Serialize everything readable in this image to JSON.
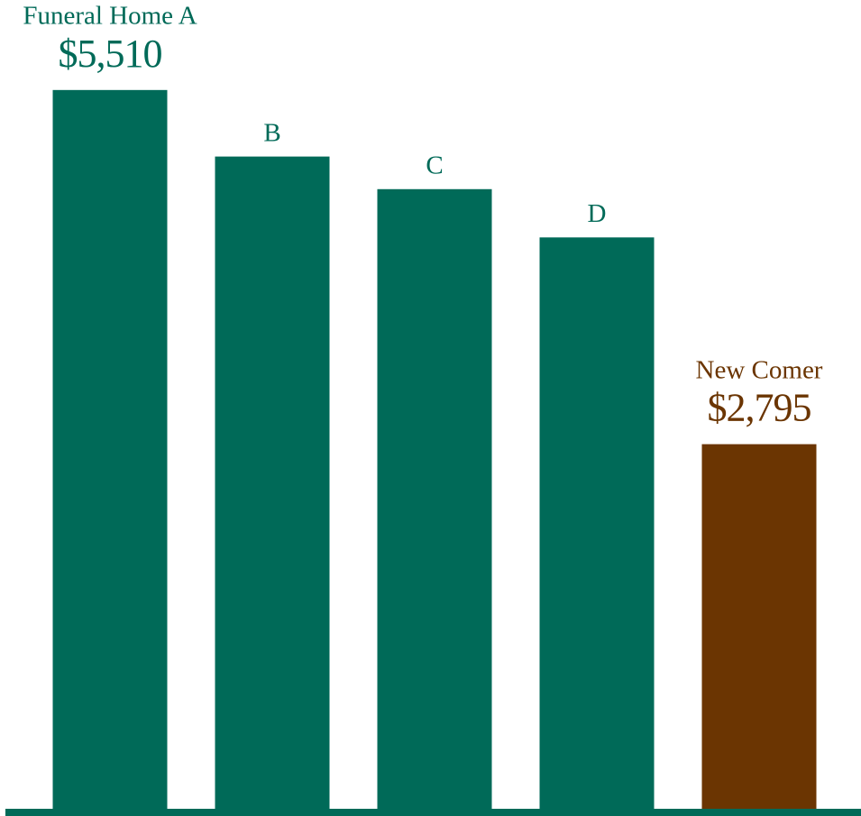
{
  "chart_data": {
    "type": "bar",
    "categories": [
      "Funeral Home A",
      "B",
      "C",
      "D",
      "New Comer"
    ],
    "values": [
      5510,
      5000,
      4750,
      4380,
      2795
    ],
    "value_labels": [
      "$5,510",
      null,
      null,
      null,
      "$2,795"
    ],
    "colors": [
      "#006a58",
      "#006a58",
      "#006a58",
      "#006a58",
      "#6b3502"
    ],
    "ylim": [
      0,
      6200
    ]
  }
}
